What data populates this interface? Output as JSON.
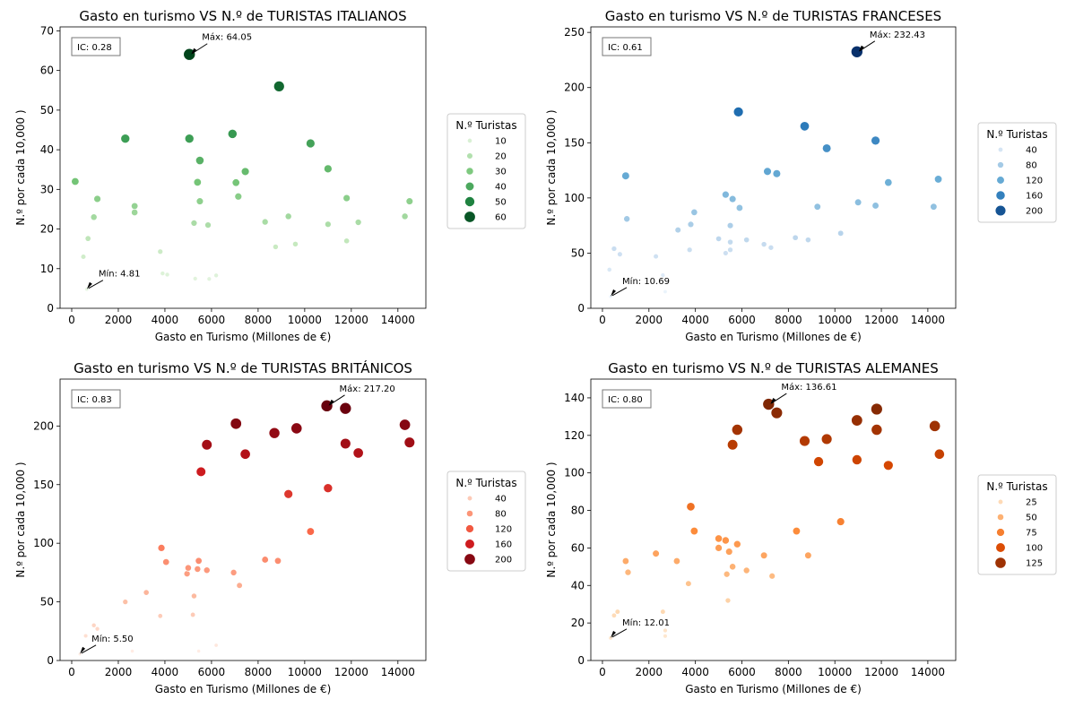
{
  "chart_data": [
    {
      "type": "scatter",
      "title": "Gasto en turismo VS N.º de TURISTAS ITALIANOS",
      "xlabel": "Gasto en Turismo (Millones de €)",
      "ylabel": "N.º por cada 10,000 )",
      "xlim": [
        -500,
        15200
      ],
      "ylim": [
        0,
        71
      ],
      "xticks": [
        0,
        2000,
        4000,
        6000,
        8000,
        10000,
        12000,
        14000
      ],
      "yticks": [
        0,
        10,
        20,
        30,
        40,
        50,
        60,
        70
      ],
      "grid": false,
      "ic_label": "IC: 0.28",
      "max_label": "Máx: 64.05",
      "max_point": [
        5050,
        64.05
      ],
      "min_label": "Mín: 4.81",
      "min_point": [
        650,
        4.81
      ],
      "legend_title": "N.º Turistas",
      "legend_position": "right",
      "legend_values": [
        10,
        20,
        30,
        40,
        50,
        60
      ],
      "size_range": [
        0,
        64.05
      ],
      "colors": [
        "#f7fcf5",
        "#c7e9c0",
        "#74c476",
        "#238b45",
        "#00441b"
      ],
      "points": [
        [
          5050,
          64.05
        ],
        [
          8900,
          56
        ],
        [
          2300,
          42.8
        ],
        [
          5050,
          42.8
        ],
        [
          6900,
          44
        ],
        [
          10250,
          41.6
        ],
        [
          5500,
          37.3
        ],
        [
          7450,
          34.5
        ],
        [
          11000,
          35.2
        ],
        [
          150,
          32
        ],
        [
          5400,
          31.8
        ],
        [
          7050,
          31.7
        ],
        [
          7150,
          28.2
        ],
        [
          1100,
          27.6
        ],
        [
          11800,
          27.8
        ],
        [
          5500,
          27
        ],
        [
          2700,
          25.8
        ],
        [
          2700,
          24.2
        ],
        [
          14500,
          27
        ],
        [
          950,
          23
        ],
        [
          9300,
          23.2
        ],
        [
          14300,
          23.2
        ],
        [
          5250,
          21.5
        ],
        [
          5850,
          21
        ],
        [
          8300,
          21.8
        ],
        [
          11000,
          21.2
        ],
        [
          12300,
          21.7
        ],
        [
          700,
          17.6
        ],
        [
          9600,
          16.2
        ],
        [
          8750,
          15.5
        ],
        [
          11800,
          17
        ],
        [
          500,
          13
        ],
        [
          3800,
          14.3
        ],
        [
          3900,
          8.8
        ],
        [
          4100,
          8.5
        ],
        [
          5300,
          7.5
        ],
        [
          5900,
          7.4
        ],
        [
          6200,
          8.3
        ],
        [
          650,
          4.81
        ]
      ]
    },
    {
      "type": "scatter",
      "title": "Gasto en turismo VS N.º de TURISTAS FRANCESES",
      "xlabel": "Gasto en Turismo (Millones de €)",
      "ylabel": "N.º por cada 10,000 )",
      "xlim": [
        -500,
        15200
      ],
      "ylim": [
        0,
        255
      ],
      "xticks": [
        0,
        2000,
        4000,
        6000,
        8000,
        10000,
        12000,
        14000
      ],
      "yticks": [
        0,
        50,
        100,
        150,
        200,
        250
      ],
      "grid": false,
      "ic_label": "IC: 0.61",
      "max_label": "Máx: 232.43",
      "max_point": [
        10950,
        232.43
      ],
      "min_label": "Mín: 10.69",
      "min_point": [
        350,
        10.69
      ],
      "legend_title": "N.º Turistas",
      "legend_position": "right",
      "legend_values": [
        40,
        80,
        120,
        160,
        200
      ],
      "size_range": [
        0,
        232.43
      ],
      "colors": [
        "#f7fbff",
        "#c6dbef",
        "#6baed6",
        "#2171b5",
        "#08306b"
      ],
      "points": [
        [
          10950,
          232.43
        ],
        [
          5850,
          178
        ],
        [
          8700,
          165
        ],
        [
          11750,
          152
        ],
        [
          9650,
          145
        ],
        [
          7100,
          124
        ],
        [
          7500,
          122
        ],
        [
          1000,
          120
        ],
        [
          14450,
          117
        ],
        [
          12300,
          114
        ],
        [
          5600,
          99
        ],
        [
          11000,
          96
        ],
        [
          9250,
          92
        ],
        [
          11750,
          93
        ],
        [
          14250,
          92
        ],
        [
          5900,
          91
        ],
        [
          3950,
          87
        ],
        [
          1050,
          81
        ],
        [
          3800,
          76
        ],
        [
          3250,
          71
        ],
        [
          5300,
          103
        ],
        [
          5500,
          75
        ],
        [
          2300,
          47
        ],
        [
          5000,
          63
        ],
        [
          5500,
          60
        ],
        [
          6200,
          62
        ],
        [
          6950,
          58
        ],
        [
          7250,
          55
        ],
        [
          8300,
          64
        ],
        [
          8850,
          62
        ],
        [
          10250,
          68
        ],
        [
          3750,
          53
        ],
        [
          5300,
          50
        ],
        [
          5500,
          53
        ],
        [
          500,
          54
        ],
        [
          750,
          49
        ],
        [
          300,
          35
        ],
        [
          2600,
          30
        ],
        [
          2700,
          15
        ],
        [
          350,
          10.69
        ]
      ]
    },
    {
      "type": "scatter",
      "title": "Gasto en turismo VS N.º de TURISTAS BRITÁNICOS",
      "xlabel": "Gasto en Turismo (Millones de €)",
      "ylabel": "N.º por cada 10,000 )",
      "xlim": [
        -500,
        15200
      ],
      "ylim": [
        0,
        240
      ],
      "xticks": [
        0,
        2000,
        4000,
        6000,
        8000,
        10000,
        12000,
        14000
      ],
      "yticks": [
        0,
        50,
        100,
        150,
        200
      ],
      "grid": false,
      "ic_label": "IC: 0.83",
      "max_label": "Máx: 217.20",
      "max_point": [
        10950,
        217.2
      ],
      "min_label": "Mín: 5.50",
      "min_point": [
        350,
        5.5
      ],
      "legend_title": "N.º Turistas",
      "legend_position": "right",
      "legend_values": [
        40,
        80,
        120,
        160,
        200
      ],
      "size_range": [
        0,
        217.2
      ],
      "colors": [
        "#fff5f0",
        "#fcbba1",
        "#fb6a4a",
        "#cb181d",
        "#67000d"
      ],
      "points": [
        [
          10950,
          217.2
        ],
        [
          11750,
          215
        ],
        [
          7050,
          202
        ],
        [
          9650,
          198
        ],
        [
          14300,
          201
        ],
        [
          8700,
          194
        ],
        [
          14500,
          186
        ],
        [
          11750,
          185
        ],
        [
          5800,
          184
        ],
        [
          12300,
          177
        ],
        [
          7450,
          176
        ],
        [
          5550,
          161
        ],
        [
          11000,
          147
        ],
        [
          9300,
          142
        ],
        [
          10250,
          110
        ],
        [
          3850,
          96
        ],
        [
          4050,
          84
        ],
        [
          5450,
          85
        ],
        [
          5000,
          79
        ],
        [
          5400,
          78
        ],
        [
          5800,
          77
        ],
        [
          4950,
          74
        ],
        [
          6950,
          75
        ],
        [
          7200,
          64
        ],
        [
          8300,
          86
        ],
        [
          8850,
          85
        ],
        [
          3200,
          58
        ],
        [
          2300,
          50
        ],
        [
          5250,
          55
        ],
        [
          3800,
          38
        ],
        [
          5200,
          39
        ],
        [
          950,
          30
        ],
        [
          600,
          21
        ],
        [
          1100,
          27
        ],
        [
          2600,
          8
        ],
        [
          5450,
          8
        ],
        [
          6200,
          13
        ],
        [
          350,
          5.5
        ]
      ]
    },
    {
      "type": "scatter",
      "title": "Gasto en turismo VS N.º de TURISTAS ALEMANES",
      "xlabel": "Gasto en Turismo (Millones de €)",
      "ylabel": "N.º por cada 10,000 )",
      "xlim": [
        -500,
        15200
      ],
      "ylim": [
        0,
        150
      ],
      "xticks": [
        0,
        2000,
        4000,
        6000,
        8000,
        10000,
        12000,
        14000
      ],
      "yticks": [
        0,
        20,
        40,
        60,
        80,
        100,
        120,
        140
      ],
      "grid": false,
      "ic_label": "IC: 0.80",
      "max_label": "Máx: 136.61",
      "max_point": [
        7150,
        136.61
      ],
      "min_label": "Mín: 12.01",
      "min_point": [
        350,
        12.01
      ],
      "legend_title": "N.º Turistas",
      "legend_position": "right",
      "legend_values": [
        25,
        50,
        75,
        100,
        125
      ],
      "size_range": [
        0,
        136.61
      ],
      "colors": [
        "#fff5eb",
        "#fdd0a2",
        "#fd8d3c",
        "#d94801",
        "#7f2704"
      ],
      "points": [
        [
          7150,
          136.61
        ],
        [
          7500,
          132
        ],
        [
          11800,
          134
        ],
        [
          10950,
          128
        ],
        [
          5800,
          123
        ],
        [
          11800,
          123
        ],
        [
          14300,
          125
        ],
        [
          8700,
          117
        ],
        [
          9650,
          118
        ],
        [
          5600,
          115
        ],
        [
          14500,
          110
        ],
        [
          10950,
          107
        ],
        [
          9300,
          106
        ],
        [
          12300,
          104
        ],
        [
          10250,
          74
        ],
        [
          3800,
          82
        ],
        [
          8350,
          69
        ],
        [
          3950,
          69
        ],
        [
          5000,
          65
        ],
        [
          5300,
          64
        ],
        [
          5800,
          62
        ],
        [
          5450,
          58
        ],
        [
          5000,
          60
        ],
        [
          2300,
          57
        ],
        [
          8850,
          56
        ],
        [
          6950,
          56
        ],
        [
          3200,
          53
        ],
        [
          1000,
          53
        ],
        [
          5600,
          50
        ],
        [
          1100,
          47
        ],
        [
          6200,
          48
        ],
        [
          5350,
          46
        ],
        [
          7300,
          45
        ],
        [
          3700,
          41
        ],
        [
          5400,
          32
        ],
        [
          2600,
          26
        ],
        [
          500,
          24
        ],
        [
          650,
          26
        ],
        [
          2700,
          16
        ],
        [
          2700,
          13
        ],
        [
          350,
          12.01
        ]
      ]
    }
  ]
}
